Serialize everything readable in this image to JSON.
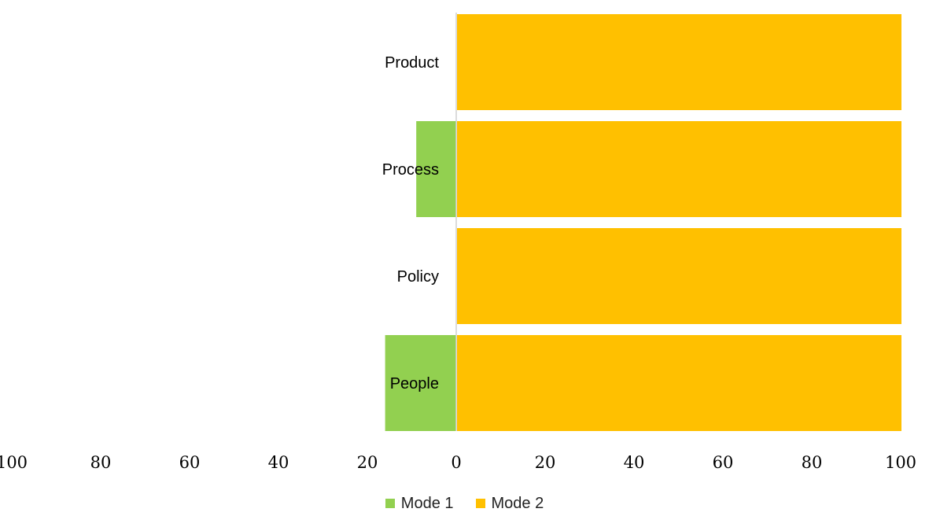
{
  "chart_data": {
    "type": "bar",
    "orientation": "horizontal-diverging",
    "categories": [
      "Product",
      "Process",
      "Policy",
      "People"
    ],
    "series": [
      {
        "name": "Mode 1",
        "values": [
          0,
          9,
          0,
          16
        ],
        "color": "#92D050",
        "direction": "left"
      },
      {
        "name": "Mode 2",
        "values": [
          100,
          100,
          100,
          100
        ],
        "color": "#FFC000",
        "direction": "right"
      }
    ],
    "xlim": [
      -100,
      100
    ],
    "x_tick_labels": [
      "100",
      "80",
      "60",
      "40",
      "20",
      "0",
      "20",
      "40",
      "60",
      "80",
      "100"
    ],
    "title": "",
    "xlabel": "",
    "ylabel": "",
    "grid": false,
    "legend_position": "bottom"
  }
}
